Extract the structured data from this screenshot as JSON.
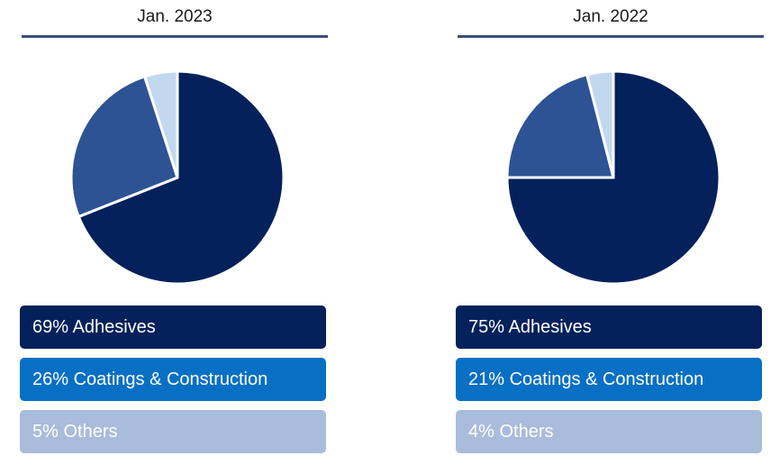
{
  "colors": {
    "adhesives_slice": "#04215b",
    "coatings_slice": "#2e5394",
    "others_slice": "#c2d8ef",
    "adhesives_box": "#04215b",
    "coatings_box": "#0770c4",
    "others_box": "#aabcdb",
    "slice_border": "#ffffff"
  },
  "chart_data": [
    {
      "type": "pie",
      "title": "Jan. 2023",
      "categories": [
        "Adhesives",
        "Coatings & Construction",
        "Others"
      ],
      "values": [
        69,
        26,
        5
      ],
      "legend_labels": [
        "69% Adhesives",
        "26% Coatings & Construction",
        "5% Others"
      ],
      "legend": "bottom"
    },
    {
      "type": "pie",
      "title": "Jan. 2022",
      "categories": [
        "Adhesives",
        "Coatings & Construction",
        "Others"
      ],
      "values": [
        75,
        21,
        4
      ],
      "legend_labels": [
        "75% Adhesives",
        "21% Coatings & Construction",
        "4% Others"
      ],
      "legend": "bottom"
    }
  ]
}
